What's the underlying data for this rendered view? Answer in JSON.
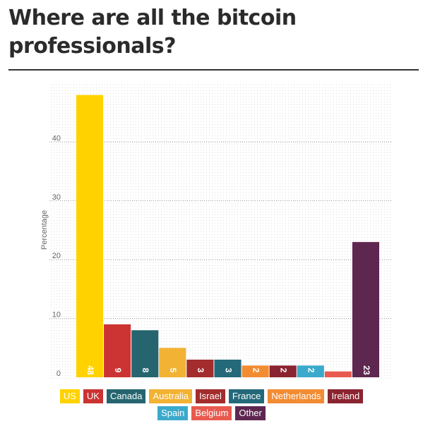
{
  "title": "Where are all the bitcoin professionals?",
  "chart_data": {
    "type": "bar",
    "title": "Where are all the bitcoin professionals?",
    "ylabel": "Percentage",
    "xlabel": "",
    "ylim": [
      0,
      50
    ],
    "yticks": [
      0,
      10,
      20,
      30,
      40
    ],
    "grid": true,
    "legend": "bottom",
    "categories": [
      "US",
      "UK",
      "Canada",
      "Australia",
      "Israel",
      "France",
      "Netherlands",
      "Ireland",
      "Spain",
      "Belgium",
      "Other"
    ],
    "values": [
      48,
      9,
      8,
      5,
      3,
      3,
      2,
      2,
      2,
      1,
      23
    ],
    "labels": [
      "48",
      "9",
      "8",
      "5",
      "3",
      "3",
      "2",
      "2",
      "2",
      "",
      "23"
    ],
    "colors": [
      "#FFD200",
      "#CC3333",
      "#26656F",
      "#F2B233",
      "#A32C2C",
      "#23697A",
      "#F28C33",
      "#8A2430",
      "#3AAACC",
      "#E85A4F",
      "#5E2750"
    ]
  }
}
